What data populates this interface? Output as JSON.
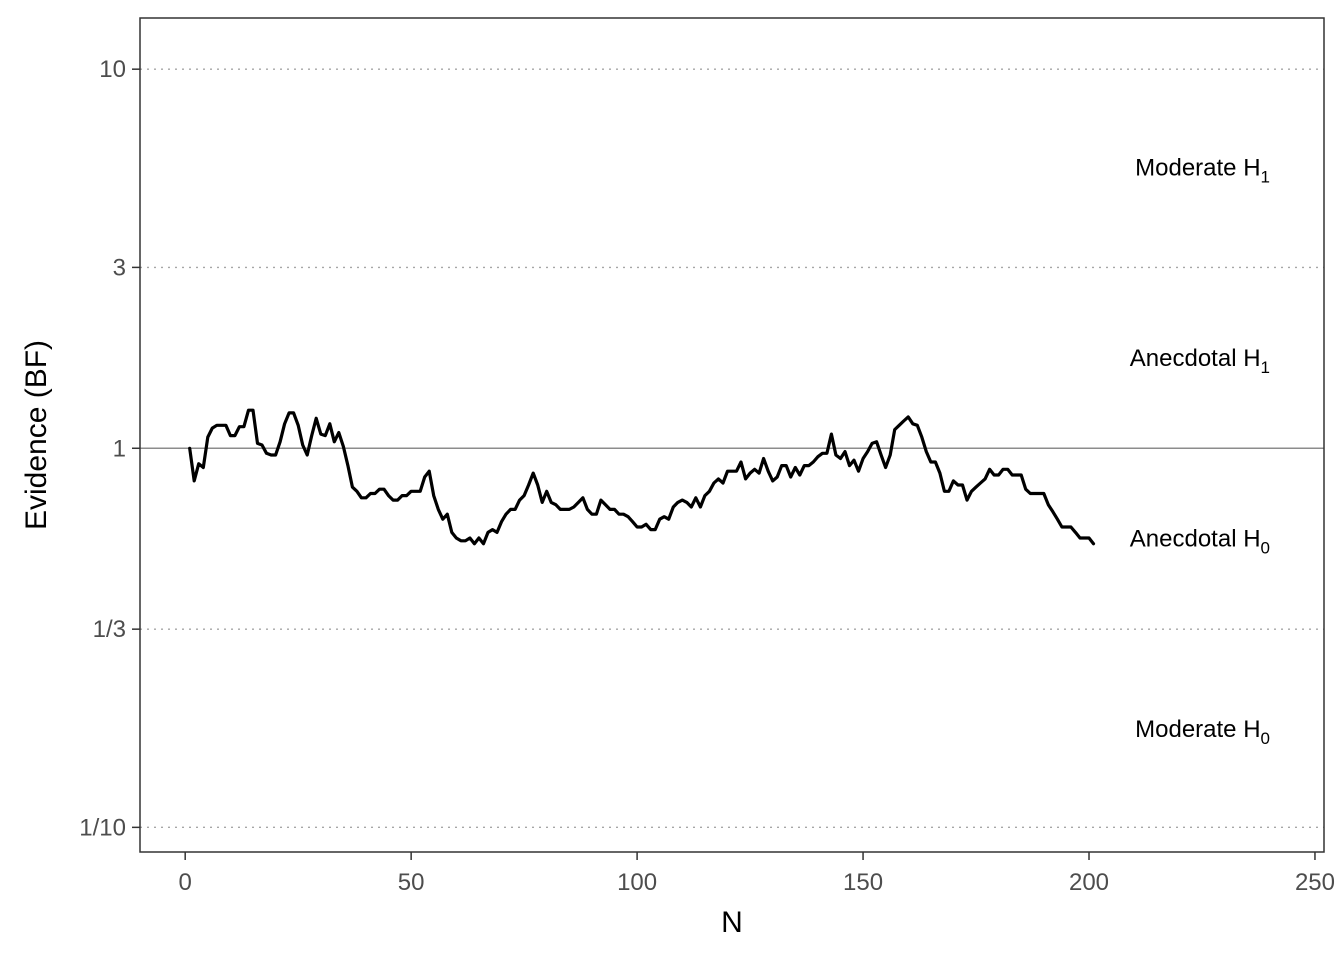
{
  "chart_data": {
    "type": "line",
    "xlabel": "N",
    "ylabel": "Evidence (BF)",
    "xlim": [
      -10,
      252
    ],
    "ylim_log10": [
      -1.065,
      1.135
    ],
    "y_scale": "log",
    "grid": "dotted horizontal at thresholds",
    "x_ticks": [
      {
        "value": 0,
        "label": "0"
      },
      {
        "value": 50,
        "label": "50"
      },
      {
        "value": 100,
        "label": "100"
      },
      {
        "value": 150,
        "label": "150"
      },
      {
        "value": 200,
        "label": "200"
      },
      {
        "value": 250,
        "label": "250"
      }
    ],
    "y_ticks": [
      {
        "value": 10,
        "label": "10"
      },
      {
        "value": 3,
        "label": "3"
      },
      {
        "value": 1,
        "label": "1"
      },
      {
        "value": 0.3333,
        "label": "1/3"
      },
      {
        "value": 0.1,
        "label": "1/10"
      }
    ],
    "reference_line": 1,
    "region_labels": [
      {
        "main": "Moderate H",
        "sub": "1",
        "y": 5.5
      },
      {
        "main": "Anecdotal H",
        "sub": "1",
        "y": 1.73
      },
      {
        "main": "Anecdotal H",
        "sub": "0",
        "y": 0.578
      },
      {
        "main": "Moderate H",
        "sub": "0",
        "y": 0.182
      }
    ],
    "series": [
      {
        "color": "#000000",
        "points": [
          [
            1,
            1.0
          ],
          [
            2,
            0.82
          ],
          [
            3,
            0.91
          ],
          [
            4,
            0.89
          ],
          [
            5,
            1.07
          ],
          [
            6,
            1.13
          ],
          [
            7,
            1.15
          ],
          [
            8,
            1.15
          ],
          [
            9,
            1.15
          ],
          [
            10,
            1.08
          ],
          [
            11,
            1.08
          ],
          [
            12,
            1.14
          ],
          [
            13,
            1.14
          ],
          [
            14,
            1.26
          ],
          [
            15,
            1.26
          ],
          [
            16,
            1.03
          ],
          [
            17,
            1.02
          ],
          [
            18,
            0.97
          ],
          [
            19,
            0.96
          ],
          [
            20,
            0.96
          ],
          [
            21,
            1.04
          ],
          [
            22,
            1.16
          ],
          [
            23,
            1.24
          ],
          [
            24,
            1.24
          ],
          [
            25,
            1.15
          ],
          [
            26,
            1.02
          ],
          [
            27,
            0.96
          ],
          [
            28,
            1.08
          ],
          [
            29,
            1.2
          ],
          [
            30,
            1.09
          ],
          [
            31,
            1.08
          ],
          [
            32,
            1.16
          ],
          [
            33,
            1.04
          ],
          [
            34,
            1.1
          ],
          [
            35,
            1.01
          ],
          [
            36,
            0.9
          ],
          [
            37,
            0.79
          ],
          [
            38,
            0.77
          ],
          [
            39,
            0.74
          ],
          [
            40,
            0.74
          ],
          [
            41,
            0.76
          ],
          [
            42,
            0.76
          ],
          [
            43,
            0.78
          ],
          [
            44,
            0.78
          ],
          [
            45,
            0.75
          ],
          [
            46,
            0.73
          ],
          [
            47,
            0.73
          ],
          [
            48,
            0.75
          ],
          [
            49,
            0.75
          ],
          [
            50,
            0.77
          ],
          [
            51,
            0.77
          ],
          [
            52,
            0.77
          ],
          [
            53,
            0.84
          ],
          [
            54,
            0.87
          ],
          [
            55,
            0.75
          ],
          [
            56,
            0.69
          ],
          [
            57,
            0.65
          ],
          [
            58,
            0.67
          ],
          [
            59,
            0.6
          ],
          [
            60,
            0.58
          ],
          [
            61,
            0.57
          ],
          [
            62,
            0.57
          ],
          [
            63,
            0.58
          ],
          [
            64,
            0.56
          ],
          [
            65,
            0.58
          ],
          [
            66,
            0.56
          ],
          [
            67,
            0.6
          ],
          [
            68,
            0.61
          ],
          [
            69,
            0.6
          ],
          [
            70,
            0.64
          ],
          [
            71,
            0.67
          ],
          [
            72,
            0.69
          ],
          [
            73,
            0.69
          ],
          [
            74,
            0.73
          ],
          [
            75,
            0.75
          ],
          [
            76,
            0.8
          ],
          [
            77,
            0.86
          ],
          [
            78,
            0.8
          ],
          [
            79,
            0.72
          ],
          [
            80,
            0.77
          ],
          [
            81,
            0.72
          ],
          [
            82,
            0.71
          ],
          [
            83,
            0.69
          ],
          [
            84,
            0.69
          ],
          [
            85,
            0.69
          ],
          [
            86,
            0.7
          ],
          [
            87,
            0.72
          ],
          [
            88,
            0.74
          ],
          [
            89,
            0.69
          ],
          [
            90,
            0.67
          ],
          [
            91,
            0.67
          ],
          [
            92,
            0.73
          ],
          [
            93,
            0.71
          ],
          [
            94,
            0.69
          ],
          [
            95,
            0.69
          ],
          [
            96,
            0.67
          ],
          [
            97,
            0.67
          ],
          [
            98,
            0.66
          ],
          [
            99,
            0.64
          ],
          [
            100,
            0.62
          ],
          [
            101,
            0.62
          ],
          [
            102,
            0.63
          ],
          [
            103,
            0.61
          ],
          [
            104,
            0.61
          ],
          [
            105,
            0.65
          ],
          [
            106,
            0.66
          ],
          [
            107,
            0.65
          ],
          [
            108,
            0.7
          ],
          [
            109,
            0.72
          ],
          [
            110,
            0.73
          ],
          [
            111,
            0.72
          ],
          [
            112,
            0.7
          ],
          [
            113,
            0.74
          ],
          [
            114,
            0.7
          ],
          [
            115,
            0.75
          ],
          [
            116,
            0.77
          ],
          [
            117,
            0.81
          ],
          [
            118,
            0.83
          ],
          [
            119,
            0.81
          ],
          [
            120,
            0.87
          ],
          [
            121,
            0.87
          ],
          [
            122,
            0.87
          ],
          [
            123,
            0.92
          ],
          [
            124,
            0.83
          ],
          [
            125,
            0.86
          ],
          [
            126,
            0.88
          ],
          [
            127,
            0.86
          ],
          [
            128,
            0.94
          ],
          [
            129,
            0.87
          ],
          [
            130,
            0.82
          ],
          [
            131,
            0.84
          ],
          [
            132,
            0.9
          ],
          [
            133,
            0.9
          ],
          [
            134,
            0.84
          ],
          [
            135,
            0.89
          ],
          [
            136,
            0.85
          ],
          [
            137,
            0.9
          ],
          [
            138,
            0.9
          ],
          [
            139,
            0.92
          ],
          [
            140,
            0.95
          ],
          [
            141,
            0.97
          ],
          [
            142,
            0.97
          ],
          [
            143,
            1.09
          ],
          [
            144,
            0.96
          ],
          [
            145,
            0.94
          ],
          [
            146,
            0.98
          ],
          [
            147,
            0.9
          ],
          [
            148,
            0.93
          ],
          [
            149,
            0.87
          ],
          [
            150,
            0.94
          ],
          [
            151,
            0.98
          ],
          [
            152,
            1.03
          ],
          [
            153,
            1.04
          ],
          [
            154,
            0.96
          ],
          [
            155,
            0.89
          ],
          [
            156,
            0.96
          ],
          [
            157,
            1.12
          ],
          [
            158,
            1.15
          ],
          [
            159,
            1.18
          ],
          [
            160,
            1.21
          ],
          [
            161,
            1.16
          ],
          [
            162,
            1.15
          ],
          [
            163,
            1.07
          ],
          [
            164,
            0.98
          ],
          [
            165,
            0.92
          ],
          [
            166,
            0.92
          ],
          [
            167,
            0.86
          ],
          [
            168,
            0.77
          ],
          [
            169,
            0.77
          ],
          [
            170,
            0.82
          ],
          [
            171,
            0.8
          ],
          [
            172,
            0.8
          ],
          [
            173,
            0.73
          ],
          [
            174,
            0.77
          ],
          [
            175,
            0.79
          ],
          [
            176,
            0.81
          ],
          [
            177,
            0.83
          ],
          [
            178,
            0.88
          ],
          [
            179,
            0.85
          ],
          [
            180,
            0.85
          ],
          [
            181,
            0.88
          ],
          [
            182,
            0.88
          ],
          [
            183,
            0.85
          ],
          [
            184,
            0.85
          ],
          [
            185,
            0.85
          ],
          [
            186,
            0.78
          ],
          [
            187,
            0.76
          ],
          [
            188,
            0.76
          ],
          [
            189,
            0.76
          ],
          [
            190,
            0.76
          ],
          [
            191,
            0.71
          ],
          [
            192,
            0.68
          ],
          [
            193,
            0.65
          ],
          [
            194,
            0.62
          ],
          [
            195,
            0.62
          ],
          [
            196,
            0.62
          ],
          [
            197,
            0.6
          ],
          [
            198,
            0.58
          ],
          [
            199,
            0.58
          ],
          [
            200,
            0.58
          ],
          [
            201,
            0.56
          ]
        ]
      }
    ]
  }
}
